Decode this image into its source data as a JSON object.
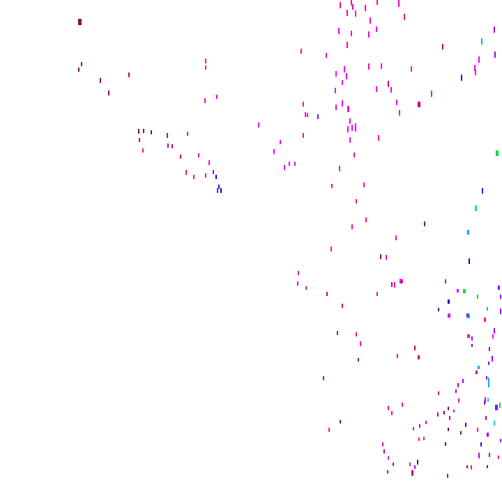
{
  "background": "#ffffff",
  "palette": {
    "maroon": "#8b0057",
    "crimson": "#c2007a",
    "pink": "#ff00b0",
    "magenta": "#f000f0",
    "violet": "#9900ff",
    "blue": "#3300ee",
    "navy": "#0000cc",
    "sky": "#00aaff",
    "cyan": "#00dddd",
    "green": "#00dd44"
  }
}
